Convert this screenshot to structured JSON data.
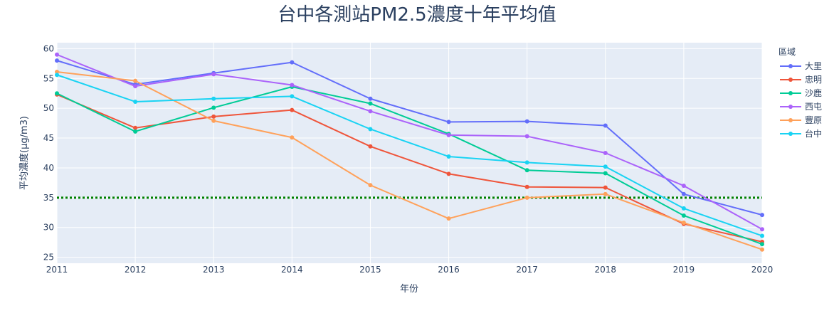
{
  "chart_data": {
    "type": "line",
    "title": "台中各測站PM2.5濃度十年平均值",
    "xlabel": "年份",
    "ylabel": "平均濃度(μg/m3)",
    "legend_title": "區域",
    "legend_position": "right",
    "grid": true,
    "x": [
      2011,
      2012,
      2013,
      2014,
      2015,
      2016,
      2017,
      2018,
      2019,
      2020
    ],
    "xlim": [
      2011,
      2020
    ],
    "ylim": [
      24,
      61
    ],
    "y_ticks": [
      25,
      30,
      35,
      40,
      45,
      50,
      55,
      60
    ],
    "reference_line": {
      "y": 35,
      "color": "#008000",
      "style": "dotted"
    },
    "series": [
      {
        "name": "大里",
        "color": "#636efa",
        "values": [
          58.0,
          54.0,
          55.9,
          57.7,
          51.6,
          47.7,
          47.8,
          47.1,
          35.6,
          32.1
        ]
      },
      {
        "name": "忠明",
        "color": "#EF553B",
        "values": [
          52.3,
          46.7,
          48.6,
          49.7,
          43.6,
          39.0,
          36.8,
          36.7,
          30.6,
          27.6
        ]
      },
      {
        "name": "沙鹿",
        "color": "#00cc96",
        "values": [
          52.5,
          46.1,
          50.1,
          53.6,
          50.8,
          45.7,
          39.6,
          39.1,
          32.0,
          27.2
        ]
      },
      {
        "name": "西屯",
        "color": "#ab63fa",
        "values": [
          59.0,
          53.7,
          55.7,
          53.9,
          49.5,
          45.5,
          45.3,
          42.5,
          37.0,
          29.7
        ]
      },
      {
        "name": "豐原",
        "color": "#FFA15A",
        "values": [
          56.1,
          54.6,
          47.9,
          45.1,
          37.1,
          31.5,
          35.0,
          35.6,
          30.8,
          26.3
        ]
      },
      {
        "name": "台中",
        "color": "#19d3f3",
        "values": [
          55.6,
          51.1,
          51.6,
          52.0,
          46.5,
          41.9,
          40.9,
          40.2,
          33.2,
          28.6
        ]
      }
    ]
  }
}
